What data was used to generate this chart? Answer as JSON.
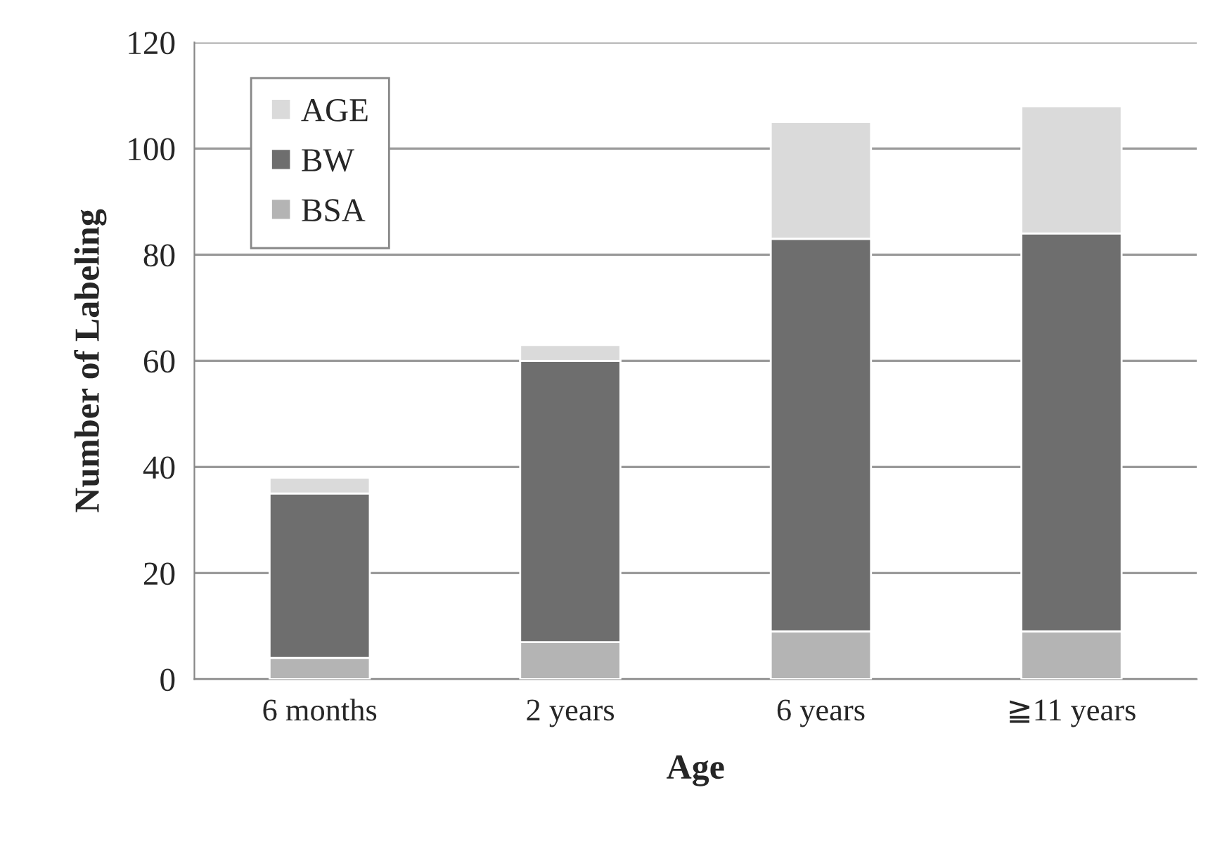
{
  "chart_data": {
    "type": "bar",
    "stacked": true,
    "xlabel": "Age",
    "ylabel": "Number of Labeling",
    "categories": [
      "6 months",
      "2 years",
      "6 years",
      "≧11 years"
    ],
    "series": [
      {
        "name": "BSA",
        "color": "#b4b4b4",
        "values": [
          4,
          7,
          9,
          9
        ]
      },
      {
        "name": "BW",
        "color": "#6e6e6e",
        "values": [
          31,
          53,
          74,
          75
        ]
      },
      {
        "name": "AGE",
        "color": "#dadada",
        "values": [
          3,
          3,
          22,
          24
        ]
      }
    ],
    "ylim": [
      0,
      120
    ],
    "yticks": [
      0,
      20,
      40,
      60,
      80,
      100,
      120
    ],
    "grid": "y",
    "legend": "top left"
  }
}
